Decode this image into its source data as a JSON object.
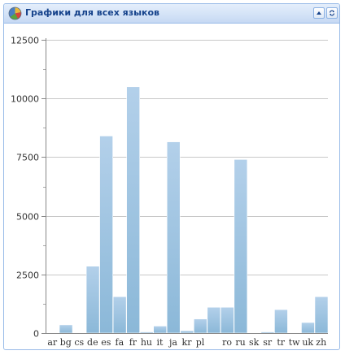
{
  "panel": {
    "title": "Графики для всех языков",
    "icons": {
      "app": "chart-palette-icon",
      "collapse": "collapse-up-icon",
      "refresh": "refresh-icon"
    }
  },
  "chart_data": {
    "type": "bar",
    "title": "",
    "xlabel": "",
    "ylabel": "",
    "ylim": [
      0,
      12500
    ],
    "yticks": [
      0,
      2500,
      5000,
      7500,
      10000,
      12500
    ],
    "grid": true,
    "categories": [
      "ar",
      "bg",
      "cs",
      "de",
      "es",
      "fa",
      "fr",
      "hu",
      "it",
      "ja",
      "kr",
      "pl",
      "",
      "ro",
      "ru",
      "sk",
      "sr",
      "tr",
      "tw",
      "uk",
      "zh"
    ],
    "values": [
      0,
      350,
      0,
      2850,
      8400,
      1550,
      10500,
      50,
      300,
      8150,
      100,
      600,
      1100,
      1100,
      7400,
      0,
      50,
      1000,
      0,
      450,
      1550
    ],
    "bar_color": "#9ec4e2"
  }
}
